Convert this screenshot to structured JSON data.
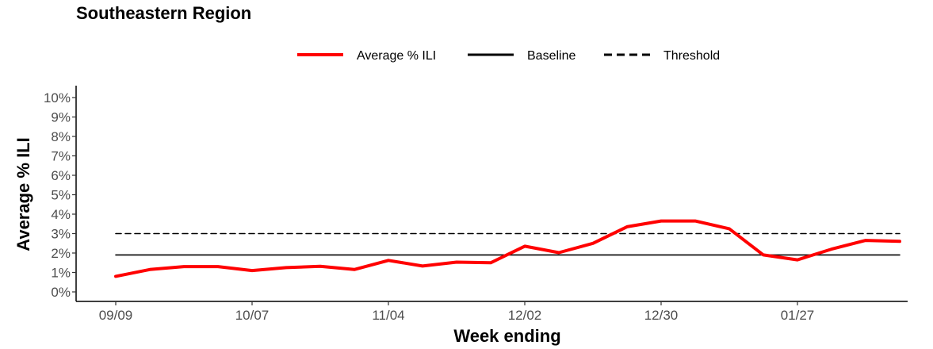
{
  "chart_data": {
    "type": "line",
    "title": "Southeastern Region",
    "xlabel": "Week ending",
    "ylabel": "Average % ILI",
    "x_tick_labels": [
      "09/09",
      "10/07",
      "11/04",
      "12/02",
      "12/30",
      "01/27"
    ],
    "y_tick_labels": [
      "0%",
      "1%",
      "2%",
      "3%",
      "4%",
      "5%",
      "6%",
      "7%",
      "8%",
      "9%",
      "10%"
    ],
    "ylim": [
      0,
      10
    ],
    "x_weeks": [
      "09/09",
      "09/16",
      "09/23",
      "09/30",
      "10/07",
      "10/14",
      "10/21",
      "10/28",
      "11/04",
      "11/11",
      "11/18",
      "11/25",
      "12/02",
      "12/09",
      "12/16",
      "12/23",
      "12/30",
      "01/06",
      "01/13",
      "01/20",
      "01/27",
      "02/03",
      "02/10",
      "02/17"
    ],
    "series": [
      {
        "name": "Average % ILI",
        "color": "#ff0000",
        "style": "solid",
        "values": [
          0.8,
          1.15,
          1.3,
          1.3,
          1.1,
          1.25,
          1.32,
          1.15,
          1.62,
          1.33,
          1.53,
          1.5,
          2.35,
          2.02,
          2.5,
          3.35,
          3.65,
          3.65,
          3.25,
          1.9,
          1.65,
          2.2,
          2.65,
          2.6
        ]
      },
      {
        "name": "Baseline",
        "color": "#000000",
        "style": "solid",
        "values": [
          1.9,
          1.9,
          1.9,
          1.9,
          1.9,
          1.9,
          1.9,
          1.9,
          1.9,
          1.9,
          1.9,
          1.9,
          1.9,
          1.9,
          1.9,
          1.9,
          1.9,
          1.9,
          1.9,
          1.9,
          1.9,
          1.9,
          1.9,
          1.9
        ]
      },
      {
        "name": "Threshold",
        "color": "#000000",
        "style": "dashed",
        "values": [
          3.0,
          3.0,
          3.0,
          3.0,
          3.0,
          3.0,
          3.0,
          3.0,
          3.0,
          3.0,
          3.0,
          3.0,
          3.0,
          3.0,
          3.0,
          3.0,
          3.0,
          3.0,
          3.0,
          3.0,
          3.0,
          3.0,
          3.0,
          3.0
        ]
      }
    ],
    "legend_position": "top",
    "grid": false
  }
}
